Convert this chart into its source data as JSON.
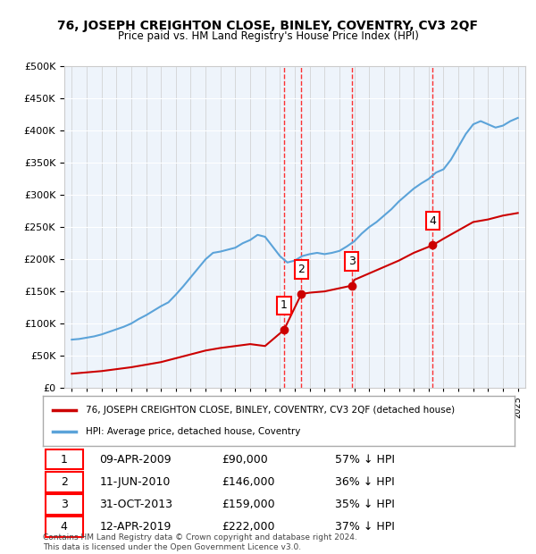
{
  "title": "76, JOSEPH CREIGHTON CLOSE, BINLEY, COVENTRY, CV3 2QF",
  "subtitle": "Price paid vs. HM Land Registry's House Price Index (HPI)",
  "ylabel": "",
  "ylim": [
    0,
    500000
  ],
  "yticks": [
    0,
    50000,
    100000,
    150000,
    200000,
    250000,
    300000,
    350000,
    400000,
    450000,
    500000
  ],
  "background_color": "#ffffff",
  "plot_bg_color": "#eef4fb",
  "hpi_color": "#5ba3d9",
  "price_color": "#cc0000",
  "sale_points": [
    {
      "date_num": 2009.27,
      "price": 90000,
      "label": "1"
    },
    {
      "date_num": 2010.44,
      "price": 146000,
      "label": "2"
    },
    {
      "date_num": 2013.83,
      "price": 159000,
      "label": "3"
    },
    {
      "date_num": 2019.28,
      "price": 222000,
      "label": "4"
    }
  ],
  "legend_entries": [
    "76, JOSEPH CREIGHTON CLOSE, BINLEY, COVENTRY, CV3 2QF (detached house)",
    "HPI: Average price, detached house, Coventry"
  ],
  "table_data": [
    [
      "1",
      "09-APR-2009",
      "£90,000",
      "57% ↓ HPI"
    ],
    [
      "2",
      "11-JUN-2010",
      "£146,000",
      "36% ↓ HPI"
    ],
    [
      "3",
      "31-OCT-2013",
      "£159,000",
      "35% ↓ HPI"
    ],
    [
      "4",
      "12-APR-2019",
      "£222,000",
      "37% ↓ HPI"
    ]
  ],
  "footer": "Contains HM Land Registry data © Crown copyright and database right 2024.\nThis data is licensed under the Open Government Licence v3.0.",
  "xmin": 1994.5,
  "xmax": 2025.5
}
